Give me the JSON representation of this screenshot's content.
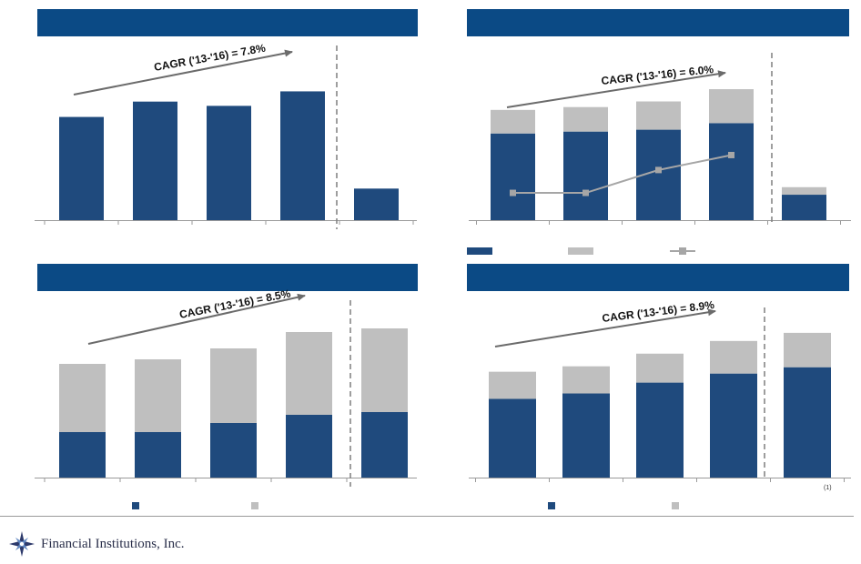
{
  "colors": {
    "header": "#0b4a85",
    "dark_bar": "#1f4a7d",
    "light_bar": "#bfbfbf",
    "line": "#a6a6a6",
    "arrow": "#6b6b6b",
    "divider": "#7f7f7f"
  },
  "footer": {
    "company": "Financial Institutions, Inc."
  },
  "chart_data": [
    {
      "type": "bar",
      "cagr_label": "CAGR ('13-'16) = 7.8%",
      "values": [
        121,
        139,
        134,
        151,
        37
      ],
      "ylim": [
        0,
        160
      ]
    },
    {
      "type": "bar",
      "stacked": true,
      "cagr_label": "CAGR ('13-'16) = 6.0%",
      "series": [
        {
          "values": [
            92,
            94,
            96,
            103,
            27
          ]
        },
        {
          "values": [
            25,
            26,
            30,
            36,
            8
          ]
        }
      ],
      "line_series": {
        "values": [
          31,
          31,
          57,
          74
        ]
      },
      "ylim": [
        0,
        140
      ],
      "line_ylim": [
        0,
        150
      ],
      "legend_markers": [
        "dark-bar",
        "light-bar",
        "line-marker"
      ]
    },
    {
      "type": "bar",
      "stacked": true,
      "cagr_label": "CAGR ('13-'16) = 8.5%",
      "series": [
        {
          "values": [
            50,
            50,
            60,
            69,
            72
          ]
        },
        {
          "values": [
            75,
            80,
            82,
            91,
            92
          ]
        }
      ],
      "ylim": [
        0,
        175
      ],
      "legend_markers": [
        "dark-square",
        "light-square"
      ]
    },
    {
      "type": "bar",
      "stacked": true,
      "cagr_label": "CAGR ('13-'16) = 8.9%",
      "series": [
        {
          "values": [
            87,
            93,
            105,
            115,
            122
          ]
        },
        {
          "values": [
            30,
            30,
            32,
            36,
            38
          ]
        }
      ],
      "ylim": [
        0,
        180
      ],
      "note": "(1)",
      "legend_markers": [
        "dark-square",
        "light-square"
      ]
    }
  ]
}
